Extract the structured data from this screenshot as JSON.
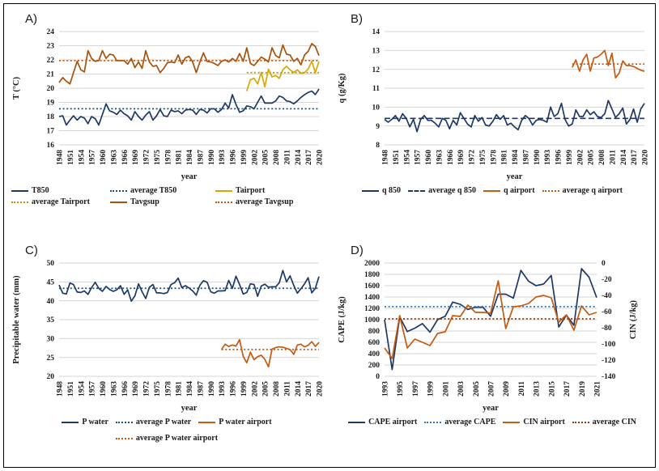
{
  "chart_data": [
    {
      "type": "line",
      "panel_label": "A)",
      "xlabel": "year",
      "ylabel": "T (°C)",
      "x_start": 1948,
      "x_end": 2020,
      "x_tick_step": 3,
      "ylim": [
        16,
        24
      ],
      "y_step": 1,
      "grid": true,
      "legend_position": "bottom",
      "legend_cols": 3,
      "series": [
        {
          "name": "T850",
          "color": "#1F3864",
          "style": "solid",
          "x_start": 1948,
          "values": [
            18.0,
            18.05,
            17.4,
            17.75,
            18.05,
            17.75,
            18.0,
            17.9,
            17.5,
            18.0,
            17.85,
            17.4,
            18.15,
            18.9,
            18.4,
            18.3,
            18.15,
            18.45,
            18.2,
            18.05,
            17.75,
            18.35,
            18.0,
            17.75,
            18.1,
            18.35,
            17.75,
            18.05,
            18.5,
            18.05,
            18.0,
            18.45,
            18.35,
            18.4,
            18.2,
            18.45,
            18.5,
            18.45,
            18.15,
            18.5,
            18.45,
            18.25,
            18.55,
            18.55,
            18.3,
            18.5,
            18.95,
            18.6,
            19.55,
            18.85,
            18.3,
            18.4,
            18.75,
            18.7,
            18.55,
            19.0,
            19.45,
            18.95,
            18.95,
            18.95,
            19.1,
            19.45,
            19.35,
            19.1,
            19.05,
            18.9,
            19.1,
            19.35,
            19.55,
            19.7,
            19.8,
            19.55,
            19.95
          ]
        },
        {
          "name": "average T850",
          "color": "#1F4E79",
          "style": "dotted",
          "x_start": 1948,
          "x_end": 2020,
          "constant": 18.55
        },
        {
          "name": "Tairport",
          "color": "#D9A800",
          "style": "solid",
          "x_start": 2000,
          "values": [
            19.8,
            20.6,
            20.7,
            20.3,
            21.1,
            20.1,
            21.35,
            20.8,
            20.9,
            20.7,
            21.3,
            21.55,
            21.3,
            21.1,
            21.3,
            21.05,
            21.1,
            21.35,
            21.9,
            21.1,
            21.9
          ]
        },
        {
          "name": "average Tairport",
          "color": "#BF9000",
          "style": "dotted",
          "x_start": 2000,
          "x_end": 2020,
          "constant": 21.1
        },
        {
          "name": "Tavgsup",
          "color": "#A5520A",
          "style": "solid",
          "x_start": 1948,
          "values": [
            20.4,
            20.75,
            20.5,
            20.3,
            21.1,
            21.9,
            21.3,
            21.15,
            22.65,
            22.1,
            21.9,
            21.95,
            22.65,
            22.1,
            22.4,
            22.35,
            21.95,
            21.95,
            21.95,
            21.7,
            22.1,
            21.45,
            21.85,
            21.4,
            22.65,
            21.85,
            21.55,
            21.6,
            21.1,
            21.4,
            21.8,
            21.85,
            21.8,
            22.35,
            21.7,
            22.15,
            22.25,
            21.85,
            21.1,
            21.85,
            22.5,
            21.9,
            21.85,
            21.75,
            21.6,
            21.9,
            22.0,
            21.85,
            22.1,
            21.9,
            22.45,
            21.9,
            22.85,
            21.75,
            21.6,
            21.9,
            22.2,
            22.05,
            21.85,
            22.85,
            22.3,
            22.15,
            23.05,
            22.4,
            22.35,
            21.9,
            22.1,
            21.65,
            22.35,
            22.6,
            23.15,
            22.95,
            22.3
          ]
        },
        {
          "name": "average Tavgsup",
          "color": "#C55A11",
          "style": "dotted",
          "x_start": 1948,
          "x_end": 2020,
          "constant": 21.95
        }
      ]
    },
    {
      "type": "line",
      "panel_label": "B)",
      "xlabel": "year",
      "ylabel": "q (g/Kg)",
      "x_start": 1948,
      "x_end": 2020,
      "x_tick_step": 3,
      "ylim": [
        8,
        14
      ],
      "y_step": 1,
      "grid": true,
      "legend_position": "bottom",
      "legend_cols": 0,
      "series": [
        {
          "name": "q 850",
          "color": "#1F3864",
          "style": "solid",
          "x_start": 1948,
          "values": [
            9.35,
            9.2,
            9.35,
            9.55,
            9.25,
            9.65,
            9.4,
            8.95,
            9.35,
            8.7,
            9.35,
            9.55,
            9.3,
            9.3,
            9.15,
            8.95,
            9.4,
            9.3,
            8.85,
            9.3,
            9.05,
            9.7,
            9.4,
            9.1,
            8.95,
            9.55,
            9.25,
            9.45,
            9.05,
            9.0,
            9.25,
            9.6,
            9.35,
            9.55,
            9.05,
            9.15,
            8.95,
            8.8,
            9.3,
            9.55,
            9.4,
            9.05,
            9.3,
            9.35,
            9.3,
            9.2,
            10.0,
            9.5,
            9.65,
            10.2,
            9.35,
            9.0,
            9.1,
            9.85,
            9.5,
            9.5,
            9.85,
            9.6,
            9.75,
            9.5,
            9.45,
            9.65,
            10.35,
            9.9,
            9.45,
            9.65,
            9.95,
            9.1,
            9.35,
            9.9,
            9.2,
            9.9,
            10.2
          ]
        },
        {
          "name": "average q 850",
          "color": "#1F3864",
          "style": "dashed",
          "x_start": 1948,
          "x_end": 2020,
          "constant": 9.4
        },
        {
          "name": "q airport",
          "color": "#C55A11",
          "style": "solid",
          "x_start": 2000,
          "values": [
            12.1,
            12.5,
            11.9,
            12.5,
            12.8,
            11.9,
            12.6,
            12.65,
            12.8,
            13.0,
            12.2,
            12.85,
            11.55,
            11.8,
            12.45,
            12.2,
            12.2,
            12.15,
            12.05,
            11.95,
            11.9
          ]
        },
        {
          "name": "average q airport",
          "color": "#C55A11",
          "style": "dotted",
          "x_start": 2000,
          "x_end": 2020,
          "constant": 12.28
        }
      ]
    },
    {
      "type": "line",
      "panel_label": "C)",
      "xlabel": "year",
      "ylabel": "Precipitable water (mm)",
      "x_start": 1948,
      "x_end": 2020,
      "x_tick_step": 3,
      "ylim": [
        20,
        50
      ],
      "y_step": 5,
      "grid": true,
      "legend_position": "bottom",
      "legend_cols": 0,
      "series": [
        {
          "name": "P water",
          "color": "#1F3864",
          "style": "solid",
          "x_start": 1948,
          "values": [
            44.2,
            42.0,
            41.8,
            44.7,
            44.3,
            42.3,
            42.2,
            42.6,
            41.7,
            43.5,
            44.9,
            43.3,
            42.5,
            43.8,
            43.0,
            42.5,
            42.9,
            44.0,
            41.7,
            42.9,
            39.9,
            41.3,
            44.5,
            42.4,
            40.6,
            43.6,
            44.3,
            42.1,
            42.1,
            41.9,
            42.2,
            44.3,
            44.8,
            46.0,
            43.5,
            44.0,
            43.4,
            42.6,
            41.5,
            44.1,
            45.3,
            44.9,
            42.4,
            42.0,
            42.6,
            42.6,
            42.7,
            45.4,
            43.3,
            46.5,
            44.3,
            41.8,
            42.2,
            44.5,
            44.3,
            41.2,
            43.9,
            44.4,
            43.6,
            43.7,
            43.7,
            44.8,
            48.0,
            45.0,
            46.6,
            44.1,
            42.0,
            43.2,
            44.5,
            46.1,
            42.1,
            43.3,
            46.4
          ]
        },
        {
          "name": "average P water",
          "color": "#1F4E79",
          "style": "dotted",
          "x_start": 1948,
          "x_end": 2020,
          "constant": 43.3
        },
        {
          "name": "P water airport",
          "color": "#C55A11",
          "style": "solid",
          "x_start": 1993,
          "values": [
            27.1,
            28.5,
            27.9,
            28.3,
            28.0,
            29.7,
            25.3,
            23.6,
            26.4,
            24.4,
            25.2,
            25.6,
            24.5,
            22.5,
            27.2,
            27.6,
            27.8,
            27.7,
            27.4,
            27.1,
            25.8,
            28.3,
            28.5,
            27.8,
            28.2,
            29.2,
            27.9,
            29.0
          ]
        },
        {
          "name": "average P water airport",
          "color": "#C55A11",
          "style": "dotted",
          "x_start": 1993,
          "x_end": 2020,
          "constant": 27.1
        }
      ]
    },
    {
      "type": "line",
      "panel_label": "D)",
      "xlabel": "year",
      "ylabel": "CAPE (J/kg)",
      "y2label": "CIN (J/kg)",
      "x_start": 1993,
      "x_end": 2021,
      "x_tick_step": 2,
      "ylim": [
        0,
        2000
      ],
      "y_step": 200,
      "y2lim": [
        -140,
        0
      ],
      "y2_step": 20,
      "grid": true,
      "legend_position": "bottom",
      "legend_cols": 0,
      "series": [
        {
          "name": "CAPE airport",
          "color": "#1F3864",
          "style": "solid",
          "x_start": 1993,
          "values": [
            1000,
            120,
            1050,
            790,
            850,
            930,
            780,
            1000,
            1060,
            1310,
            1270,
            1180,
            1220,
            1220,
            1060,
            1450,
            1450,
            1380,
            1870,
            1680,
            1600,
            1630,
            1780,
            870,
            1080,
            900,
            1900,
            1750,
            1390
          ]
        },
        {
          "name": "average CAPE",
          "color": "#2E75B6",
          "style": "dotted",
          "x_start": 1993,
          "x_end": 2021,
          "constant": 1230
        },
        {
          "name": "CIN airport",
          "color": "#C55A11",
          "style": "solid",
          "axis": "y2",
          "x_start": 1993,
          "values": [
            -105,
            -118,
            -65,
            -105,
            -94,
            -98,
            -102,
            -87,
            -85,
            -65,
            -66,
            -52,
            -61,
            -61,
            -62,
            -22,
            -81,
            -54,
            -53,
            -50,
            -42,
            -40,
            -43,
            -73,
            -64,
            -83,
            -53,
            -64,
            -61
          ]
        },
        {
          "name": "average CIN",
          "color": "#843C0C",
          "style": "dotted",
          "axis": "y2",
          "x_start": 1993,
          "x_end": 2021,
          "constant": -69
        }
      ]
    }
  ]
}
